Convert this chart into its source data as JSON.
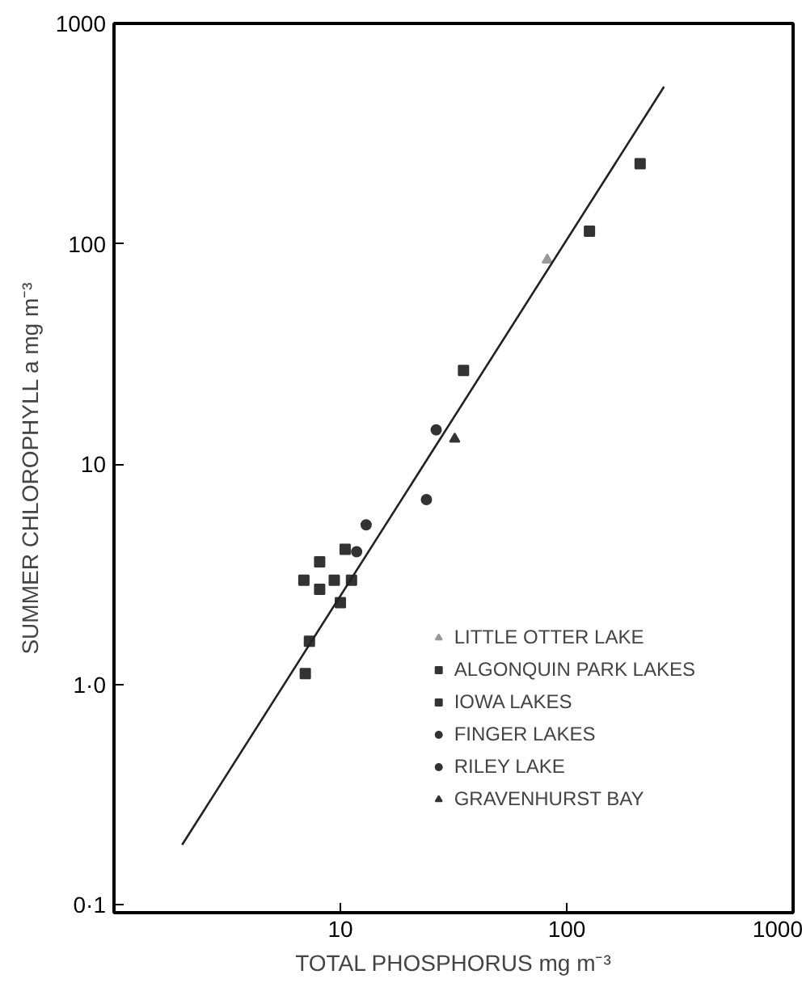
{
  "chart_data": {
    "type": "scatter",
    "xlabel": "TOTAL PHOSPHORUS mg m⁻³",
    "ylabel": "SUMMER CHLOROPHYLL a mg m⁻³",
    "log": "xy",
    "grid": false,
    "legend": "bottom right",
    "xlim": [
      1,
      1000
    ],
    "ylim": [
      0.092,
      1000
    ],
    "xticks": [
      10,
      100,
      1000
    ],
    "yticks": [
      {
        "value": 0.1,
        "label": "0·1"
      },
      {
        "value": 1,
        "label": "1·0"
      },
      10,
      100,
      1000
    ],
    "series": [
      {
        "name": "LITTLE OTTER LAKE",
        "color": "#999999",
        "marker": "triangle",
        "x": [
          82
        ],
        "values": [
          84.5
        ]
      },
      {
        "name": "ALGONQUIN PARK LAKES",
        "color": "#333333",
        "marker": "square",
        "x": [
          6.9,
          8.1,
          8.1,
          9.4,
          11.2,
          10,
          7.3,
          7.0
        ],
        "values": [
          2.97,
          3.6,
          2.7,
          2.97,
          2.97,
          2.35,
          1.57,
          1.12
        ]
      },
      {
        "name": "IOWA LAKES",
        "color": "#333333",
        "marker": "square",
        "x": [
          10.5,
          211,
          126,
          35
        ],
        "values": [
          4.1,
          231,
          114,
          26.6
        ]
      },
      {
        "name": "FINGER LAKES",
        "color": "#333333",
        "marker": "circle",
        "x": [
          13.0,
          24,
          11.8
        ],
        "values": [
          5.3,
          6.9,
          4.0
        ]
      },
      {
        "name": "RILEY LAKE",
        "color": "#333333",
        "marker": "circle",
        "x": [
          26.5
        ],
        "values": [
          14.3
        ]
      },
      {
        "name": "GRAVENHURST BAY",
        "color": "#333333",
        "marker": "triangle",
        "x": [
          32
        ],
        "values": [
          13.0
        ]
      },
      {
        "type": "line",
        "color": "#222222",
        "line_style": "solid",
        "x": [
          2,
          269
        ],
        "values": [
          0.187,
          516
        ]
      }
    ]
  }
}
